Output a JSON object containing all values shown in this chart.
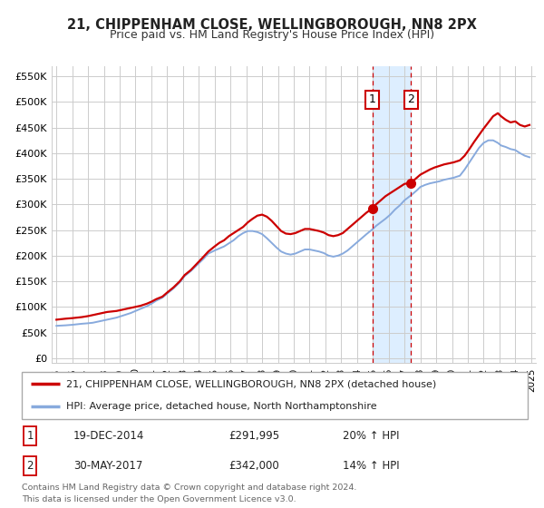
{
  "title": "21, CHIPPENHAM CLOSE, WELLINGBOROUGH, NN8 2PX",
  "subtitle": "Price paid vs. HM Land Registry's House Price Index (HPI)",
  "ylabel_ticks": [
    0,
    50000,
    100000,
    150000,
    200000,
    250000,
    300000,
    350000,
    400000,
    450000,
    500000,
    550000
  ],
  "ylabel_labels": [
    "£0",
    "£50K",
    "£100K",
    "£150K",
    "£200K",
    "£250K",
    "£300K",
    "£350K",
    "£400K",
    "£450K",
    "£500K",
    "£550K"
  ],
  "xlim": [
    1994.7,
    2025.3
  ],
  "ylim": [
    -10000,
    570000
  ],
  "price_paid_x": [
    1995.0,
    1995.3,
    1995.6,
    1996.0,
    1996.3,
    1996.6,
    1997.0,
    1997.3,
    1997.6,
    1997.9,
    1998.2,
    1998.5,
    1998.8,
    1999.1,
    1999.4,
    1999.7,
    2000.0,
    2000.3,
    2000.7,
    2001.0,
    2001.3,
    2001.7,
    2002.0,
    2002.4,
    2002.8,
    2003.1,
    2003.5,
    2003.9,
    2004.3,
    2004.6,
    2005.0,
    2005.3,
    2005.6,
    2005.9,
    2006.2,
    2006.5,
    2006.8,
    2007.1,
    2007.4,
    2007.7,
    2008.0,
    2008.3,
    2008.6,
    2008.9,
    2009.2,
    2009.5,
    2009.8,
    2010.1,
    2010.4,
    2010.7,
    2011.0,
    2011.3,
    2011.6,
    2011.9,
    2012.2,
    2012.5,
    2012.8,
    2013.1,
    2013.4,
    2013.7,
    2014.0,
    2014.3,
    2014.6,
    2014.96,
    2015.2,
    2015.5,
    2015.8,
    2016.1,
    2016.4,
    2016.7,
    2017.0,
    2017.41,
    2017.7,
    2018.0,
    2018.3,
    2018.6,
    2018.9,
    2019.2,
    2019.5,
    2019.8,
    2020.1,
    2020.5,
    2020.8,
    2021.1,
    2021.4,
    2021.7,
    2022.0,
    2022.3,
    2022.6,
    2022.9,
    2023.1,
    2023.4,
    2023.7,
    2024.0,
    2024.3,
    2024.6,
    2024.9
  ],
  "price_paid_y": [
    75000,
    76000,
    77000,
    78000,
    79000,
    80000,
    82000,
    84000,
    86000,
    88000,
    90000,
    91000,
    92000,
    94000,
    96000,
    98000,
    100000,
    102000,
    106000,
    110000,
    115000,
    120000,
    128000,
    138000,
    150000,
    162000,
    172000,
    185000,
    198000,
    208000,
    218000,
    225000,
    230000,
    238000,
    244000,
    250000,
    256000,
    265000,
    272000,
    278000,
    280000,
    276000,
    268000,
    258000,
    248000,
    243000,
    242000,
    244000,
    248000,
    252000,
    252000,
    250000,
    248000,
    245000,
    240000,
    238000,
    240000,
    244000,
    252000,
    260000,
    268000,
    276000,
    284000,
    291995,
    300000,
    308000,
    316000,
    322000,
    328000,
    334000,
    340000,
    342000,
    350000,
    358000,
    363000,
    368000,
    372000,
    375000,
    378000,
    380000,
    382000,
    386000,
    395000,
    408000,
    422000,
    435000,
    448000,
    460000,
    472000,
    478000,
    472000,
    465000,
    460000,
    462000,
    455000,
    452000,
    455000
  ],
  "hpi_x": [
    1995.0,
    1995.3,
    1995.6,
    1996.0,
    1996.3,
    1996.6,
    1997.0,
    1997.3,
    1997.6,
    1997.9,
    1998.2,
    1998.5,
    1998.8,
    1999.1,
    1999.4,
    1999.7,
    2000.0,
    2000.3,
    2000.7,
    2001.0,
    2001.3,
    2001.7,
    2002.0,
    2002.4,
    2002.8,
    2003.1,
    2003.5,
    2003.9,
    2004.3,
    2004.6,
    2005.0,
    2005.3,
    2005.6,
    2005.9,
    2006.2,
    2006.5,
    2006.8,
    2007.1,
    2007.4,
    2007.7,
    2008.0,
    2008.3,
    2008.6,
    2008.9,
    2009.2,
    2009.5,
    2009.8,
    2010.1,
    2010.4,
    2010.7,
    2011.0,
    2011.3,
    2011.6,
    2011.9,
    2012.2,
    2012.5,
    2012.8,
    2013.1,
    2013.4,
    2013.7,
    2014.0,
    2014.3,
    2014.6,
    2015.0,
    2015.2,
    2015.5,
    2015.8,
    2016.1,
    2016.4,
    2016.7,
    2017.0,
    2017.5,
    2017.8,
    2018.0,
    2018.3,
    2018.6,
    2018.9,
    2019.2,
    2019.5,
    2019.8,
    2020.1,
    2020.5,
    2020.8,
    2021.1,
    2021.4,
    2021.7,
    2022.0,
    2022.3,
    2022.6,
    2022.9,
    2023.1,
    2023.4,
    2023.7,
    2024.0,
    2024.3,
    2024.6,
    2024.9
  ],
  "hpi_y": [
    63000,
    63500,
    64000,
    65000,
    66000,
    67000,
    68000,
    69000,
    71000,
    73000,
    75000,
    77000,
    79000,
    82000,
    85000,
    88000,
    92000,
    96000,
    101000,
    106000,
    112000,
    118000,
    126000,
    136000,
    148000,
    160000,
    170000,
    182000,
    194000,
    204000,
    210000,
    214000,
    218000,
    224000,
    230000,
    238000,
    244000,
    248000,
    248000,
    246000,
    242000,
    234000,
    225000,
    216000,
    208000,
    204000,
    202000,
    204000,
    208000,
    212000,
    212000,
    210000,
    208000,
    205000,
    200000,
    198000,
    200000,
    204000,
    210000,
    218000,
    226000,
    234000,
    242000,
    252000,
    258000,
    265000,
    272000,
    280000,
    290000,
    298000,
    308000,
    320000,
    328000,
    334000,
    338000,
    341000,
    343000,
    345000,
    348000,
    350000,
    352000,
    356000,
    368000,
    382000,
    396000,
    410000,
    420000,
    425000,
    425000,
    420000,
    415000,
    412000,
    408000,
    406000,
    400000,
    395000,
    392000
  ],
  "transaction1_x": 2014.96,
  "transaction1_y": 291995,
  "transaction2_x": 2017.41,
  "transaction2_y": 342000,
  "shade_color": "#ddeeff",
  "red_color": "#cc0000",
  "blue_color": "#88aadd",
  "grid_color": "#cccccc",
  "legend_label_red": "21, CHIPPENHAM CLOSE, WELLINGBOROUGH, NN8 2PX (detached house)",
  "legend_label_blue": "HPI: Average price, detached house, North Northamptonshire",
  "table_rows": [
    {
      "num": "1",
      "date": "19-DEC-2014",
      "price": "£291,995",
      "hpi": "20% ↑ HPI"
    },
    {
      "num": "2",
      "date": "30-MAY-2017",
      "price": "£342,000",
      "hpi": "14% ↑ HPI"
    }
  ],
  "footer_text": "Contains HM Land Registry data © Crown copyright and database right 2024.\nThis data is licensed under the Open Government Licence v3.0.",
  "xticks": [
    1995,
    1996,
    1997,
    1998,
    1999,
    2000,
    2001,
    2002,
    2003,
    2004,
    2005,
    2006,
    2007,
    2008,
    2009,
    2010,
    2011,
    2012,
    2013,
    2014,
    2015,
    2016,
    2017,
    2018,
    2019,
    2020,
    2021,
    2022,
    2023,
    2024,
    2025
  ]
}
